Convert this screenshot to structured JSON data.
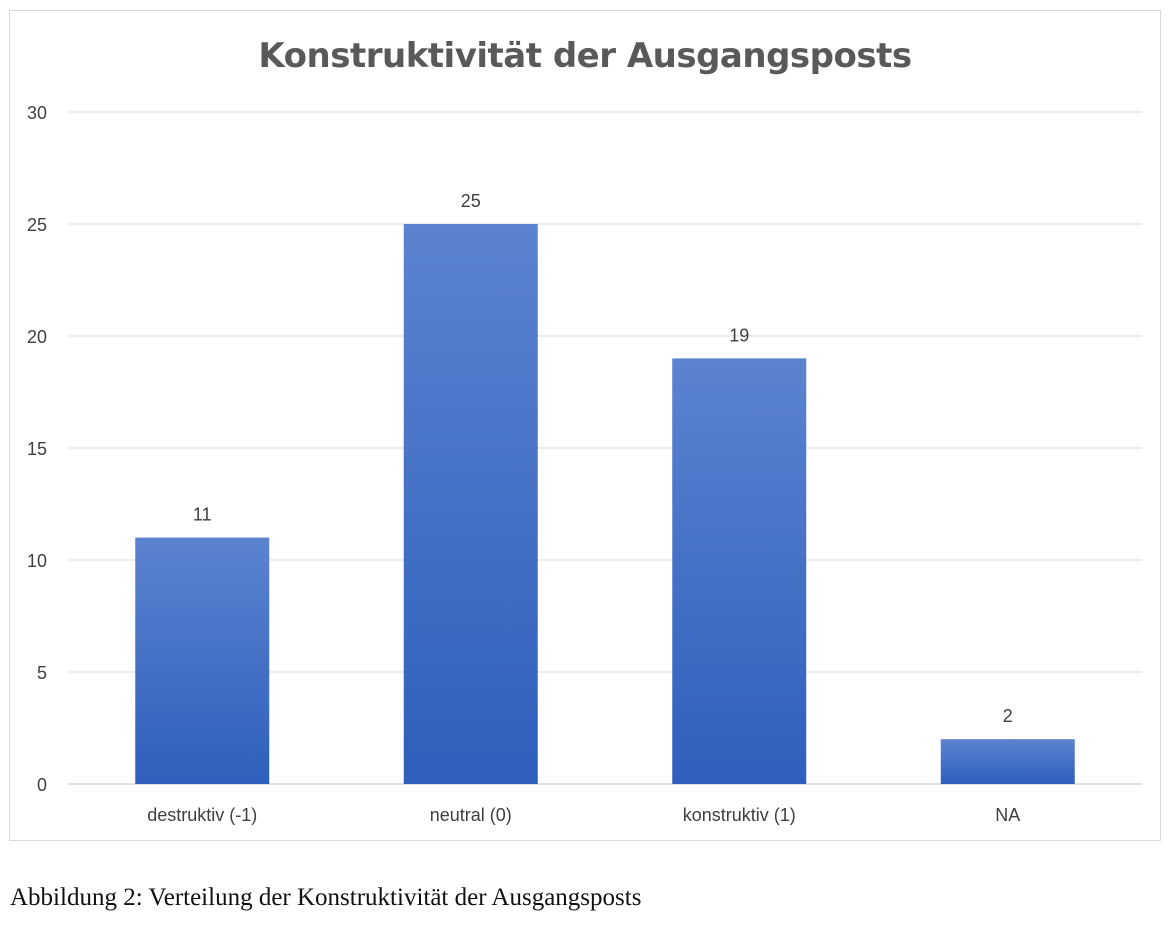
{
  "chart_data": {
    "type": "bar",
    "title": "Konstruktivität der Ausgangsposts",
    "categories": [
      "destruktiv (-1)",
      "neutral (0)",
      "konstruktiv (1)",
      "NA"
    ],
    "values": [
      11,
      25,
      19,
      2
    ],
    "data_labels": [
      "11",
      "25",
      "19",
      "2"
    ],
    "ylim": [
      0,
      30
    ],
    "yticks": [
      0,
      5,
      10,
      15,
      20,
      25,
      30
    ],
    "xlabel": "",
    "ylabel": "",
    "grid": true,
    "legend": "none",
    "bar_color_top": "#5b83cf",
    "bar_color_bottom": "#2f5fbd",
    "gridline_color": "#d9d9d9",
    "text_color": "#404040"
  },
  "caption": "Abbildung 2: Verteilung der Konstruktivität der Ausgangsposts"
}
